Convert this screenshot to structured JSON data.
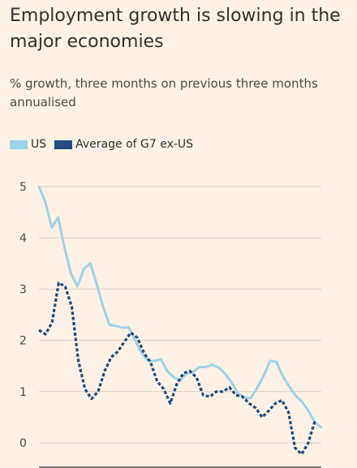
{
  "colors": {
    "background": "#fff1e5",
    "grid": "#d9cdc3",
    "axis": "#33302e",
    "us": "#9dd3e6",
    "g7": "#1f4e7e"
  },
  "chart_data": {
    "type": "line",
    "title": "Employment growth is slowing in the major economies",
    "subtitle": "% growth, three months on previous three months annualised",
    "ylim": [
      -0.5,
      5
    ],
    "yticks": [
      0,
      1,
      2,
      3,
      4,
      5
    ],
    "ytick_labels": [
      "0",
      "1",
      "2",
      "3",
      "4",
      "5"
    ],
    "grid": true,
    "legend_position": "top-left",
    "series": [
      {
        "name": "US",
        "style": "solid",
        "values": [
          5.0,
          4.7,
          4.2,
          4.4,
          3.8,
          3.3,
          3.05,
          3.4,
          3.5,
          3.1,
          2.65,
          2.3,
          2.28,
          2.25,
          2.25,
          2.0,
          1.75,
          1.6,
          1.6,
          1.63,
          1.4,
          1.28,
          1.22,
          1.35,
          1.38,
          1.48,
          1.48,
          1.52,
          1.47,
          1.35,
          1.18,
          0.97,
          0.88,
          0.87,
          1.07,
          1.3,
          1.6,
          1.58,
          1.3,
          1.1,
          0.92,
          0.8,
          0.62,
          0.4,
          0.3
        ]
      },
      {
        "name": "Average of G7 ex-US",
        "style": "dashed",
        "values": [
          2.2,
          2.12,
          2.35,
          3.12,
          3.05,
          2.65,
          1.6,
          1.05,
          0.86,
          1.0,
          1.4,
          1.67,
          1.78,
          1.97,
          2.15,
          2.05,
          1.75,
          1.57,
          1.2,
          1.05,
          0.77,
          1.15,
          1.36,
          1.4,
          1.27,
          0.93,
          0.9,
          1.0,
          1.0,
          1.08,
          0.93,
          0.9,
          0.77,
          0.68,
          0.5,
          0.63,
          0.77,
          0.83,
          0.6,
          -0.1,
          -0.22,
          0.0,
          0.42
        ]
      }
    ]
  }
}
